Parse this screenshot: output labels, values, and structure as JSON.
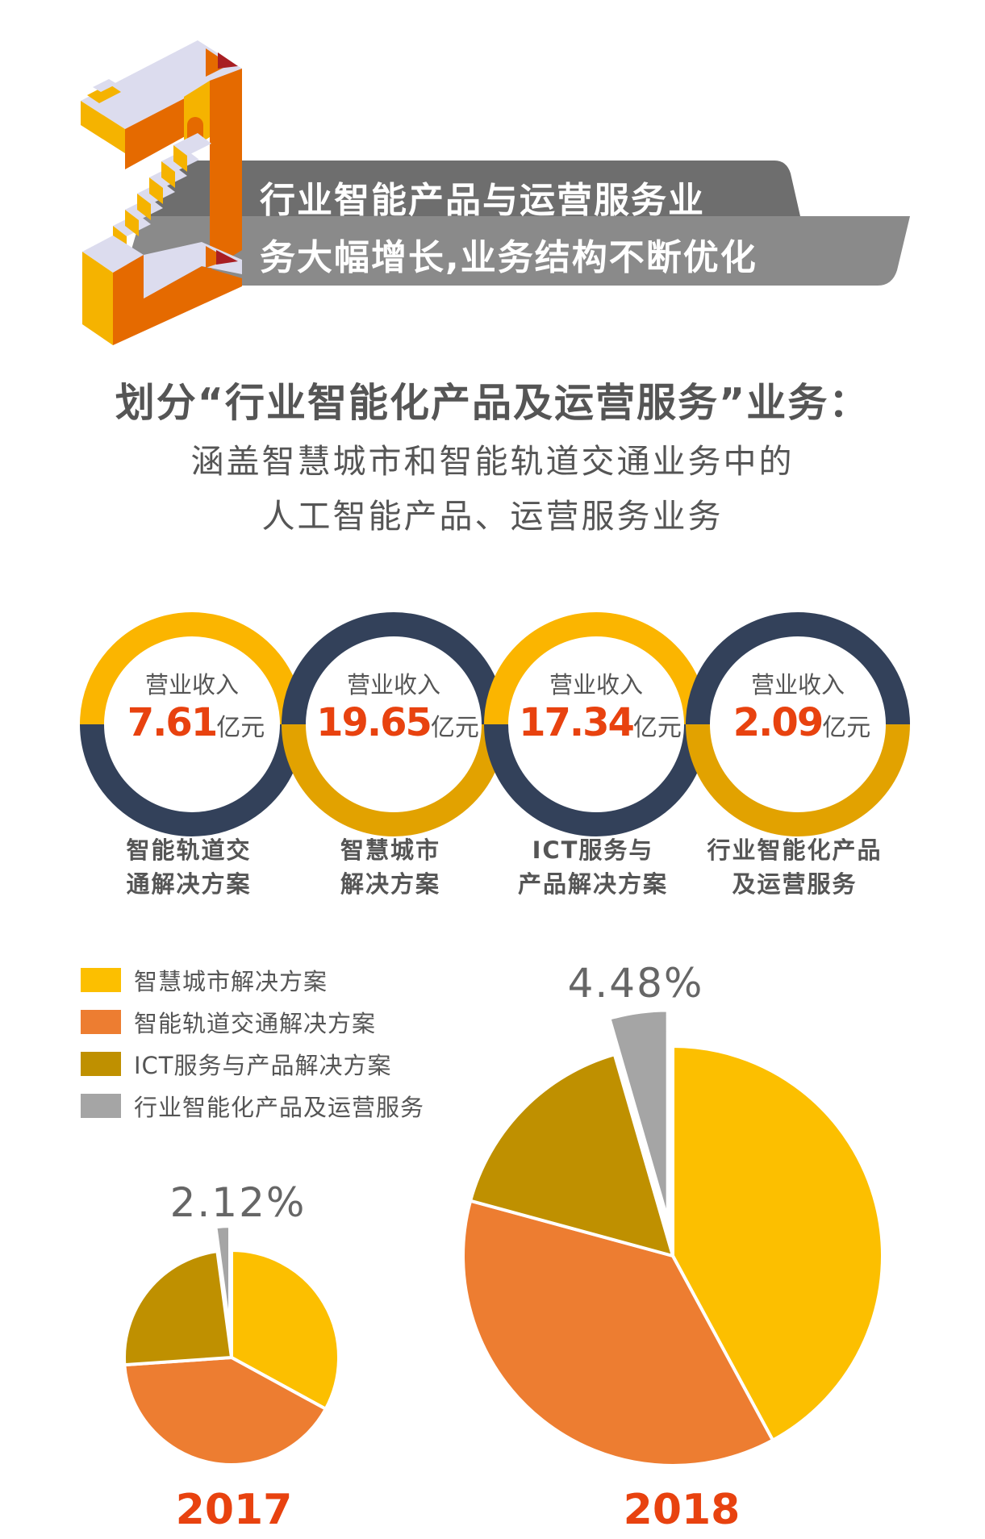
{
  "banner": {
    "line1": "行业智能产品与运营服务业",
    "line2": "务大幅增长,业务结构不断优化"
  },
  "heading": "划分“行业智能化产品及运营服务”业务：",
  "subtitle": [
    "涵盖智慧城市和智能轨道交通业务中的",
    "人工智能产品、运营服务业务"
  ],
  "revenue_rings": [
    {
      "label": "营业收入",
      "value": "7.61",
      "unit": "亿元",
      "name": [
        "智能轨道交",
        "通解决方案"
      ],
      "top_color": "#FBB500",
      "bottom_color": "#33415A"
    },
    {
      "label": "营业收入",
      "value": "19.65",
      "unit": "亿元",
      "name": [
        "智慧城市",
        "解决方案"
      ],
      "top_color": "#33415A",
      "bottom_color": "#E2A200"
    },
    {
      "label": "营业收入",
      "value": "17.34",
      "unit": "亿元",
      "name": [
        "ICT服务与",
        "产品解决方案"
      ],
      "top_color": "#FBB500",
      "bottom_color": "#33415A"
    },
    {
      "label": "营业收入",
      "value": "2.09",
      "unit": "亿元",
      "name": [
        "行业智能化产品",
        "及运营服务"
      ],
      "top_color": "#33415A",
      "bottom_color": "#E2A200"
    }
  ],
  "chart_data": [
    {
      "type": "pie",
      "title": "2017",
      "legend": "top-left",
      "categories": [
        "智慧城市解决方案",
        "智能轨道交通解决方案",
        "ICT服务与产品解决方案",
        "行业智能化产品及运营服务"
      ],
      "colors": [
        "#FCBF00",
        "#ED7D31",
        "#BF9000",
        "#A5A5A5"
      ],
      "values": [
        33,
        41,
        24,
        2.12
      ],
      "annotations": [
        "2.12%"
      ]
    },
    {
      "type": "pie",
      "title": "2018",
      "legend": "top-left",
      "categories": [
        "智慧城市解决方案",
        "智能轨道交通解决方案",
        "ICT服务与产品解决方案",
        "行业智能化产品及运营服务"
      ],
      "colors": [
        "#FCBF00",
        "#ED7D31",
        "#BF9000",
        "#A5A5A5"
      ],
      "values": [
        42.09,
        37.14,
        16.29,
        4.48
      ],
      "annotations": [
        "4.48%"
      ]
    }
  ]
}
